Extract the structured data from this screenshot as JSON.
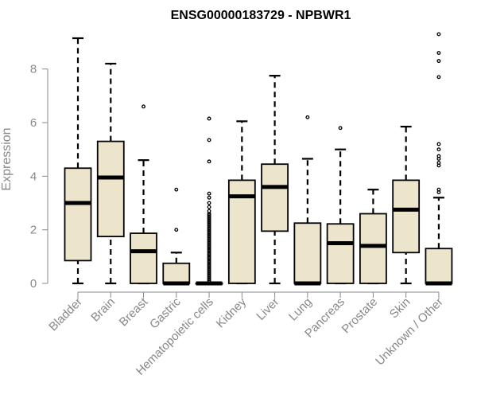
{
  "chart_data": {
    "type": "boxplot",
    "title": "ENSG00000183729 - NPBWR1",
    "ylabel": "Expression",
    "xlabel": "",
    "ylim": [
      0,
      9.4
    ],
    "yticks": [
      0,
      2,
      4,
      6,
      8
    ],
    "categories": [
      "Bladder",
      "Brain",
      "Breast",
      "Gastric",
      "Hematopoietic cells",
      "Kidney",
      "Liver",
      "Lung",
      "Pancreas",
      "Prostate",
      "Skin",
      "Unknown / Other"
    ],
    "boxes": [
      {
        "whisker_low": 0,
        "q1": 0.85,
        "median": 3.0,
        "q3": 4.3,
        "whisker_high": 9.15,
        "outliers": []
      },
      {
        "whisker_low": 0,
        "q1": 1.75,
        "median": 3.95,
        "q3": 5.3,
        "whisker_high": 8.2,
        "outliers": []
      },
      {
        "whisker_low": 0,
        "q1": 0,
        "median": 1.2,
        "q3": 1.87,
        "whisker_high": 4.6,
        "outliers": [
          6.6
        ]
      },
      {
        "whisker_low": 0,
        "q1": 0,
        "median": 0,
        "q3": 0.75,
        "whisker_high": 1.15,
        "outliers": [
          2.0,
          3.5
        ]
      },
      {
        "whisker_low": 0,
        "q1": 0,
        "median": 0,
        "q3": 0,
        "whisker_high": 0,
        "outliers": [
          0.1,
          0.15,
          0.2,
          0.25,
          0.3,
          0.35,
          0.4,
          0.45,
          0.5,
          0.55,
          0.6,
          0.65,
          0.7,
          0.75,
          0.8,
          0.85,
          0.9,
          0.95,
          1.0,
          1.05,
          1.1,
          1.15,
          1.2,
          1.25,
          1.3,
          1.35,
          1.4,
          1.45,
          1.5,
          1.55,
          1.6,
          1.65,
          1.7,
          1.75,
          1.8,
          1.85,
          1.9,
          1.95,
          2.0,
          2.05,
          2.1,
          2.15,
          2.2,
          2.25,
          2.3,
          2.35,
          2.4,
          2.45,
          2.5,
          2.55,
          2.6,
          2.7,
          2.85,
          3.0,
          3.2,
          3.35,
          4.55,
          5.35,
          6.15
        ]
      },
      {
        "whisker_low": 0,
        "q1": 0,
        "median": 3.25,
        "q3": 3.85,
        "whisker_high": 6.05,
        "outliers": []
      },
      {
        "whisker_low": 0,
        "q1": 1.95,
        "median": 3.6,
        "q3": 4.45,
        "whisker_high": 7.75,
        "outliers": []
      },
      {
        "whisker_low": 0,
        "q1": 0,
        "median": 0,
        "q3": 2.25,
        "whisker_high": 4.65,
        "outliers": [
          6.2
        ]
      },
      {
        "whisker_low": 0,
        "q1": 0,
        "median": 1.5,
        "q3": 2.22,
        "whisker_high": 5.0,
        "outliers": [
          5.8
        ]
      },
      {
        "whisker_low": 0,
        "q1": 0,
        "median": 1.4,
        "q3": 2.6,
        "whisker_high": 3.5,
        "outliers": []
      },
      {
        "whisker_low": 0,
        "q1": 1.15,
        "median": 2.75,
        "q3": 3.85,
        "whisker_high": 5.85,
        "outliers": []
      },
      {
        "whisker_low": 0,
        "q1": 0,
        "median": 0,
        "q3": 1.3,
        "whisker_high": 3.2,
        "outliers": [
          3.4,
          3.5,
          4.4,
          4.5,
          4.65,
          4.75,
          5.0,
          5.2,
          7.7,
          8.3,
          8.6,
          9.3
        ]
      }
    ],
    "colors": {
      "box_fill": "#ede5cb",
      "box_stroke": "#000000",
      "axis": "#888888",
      "text": "#888888",
      "title": "#000000"
    },
    "grid": false,
    "legend": "none"
  }
}
